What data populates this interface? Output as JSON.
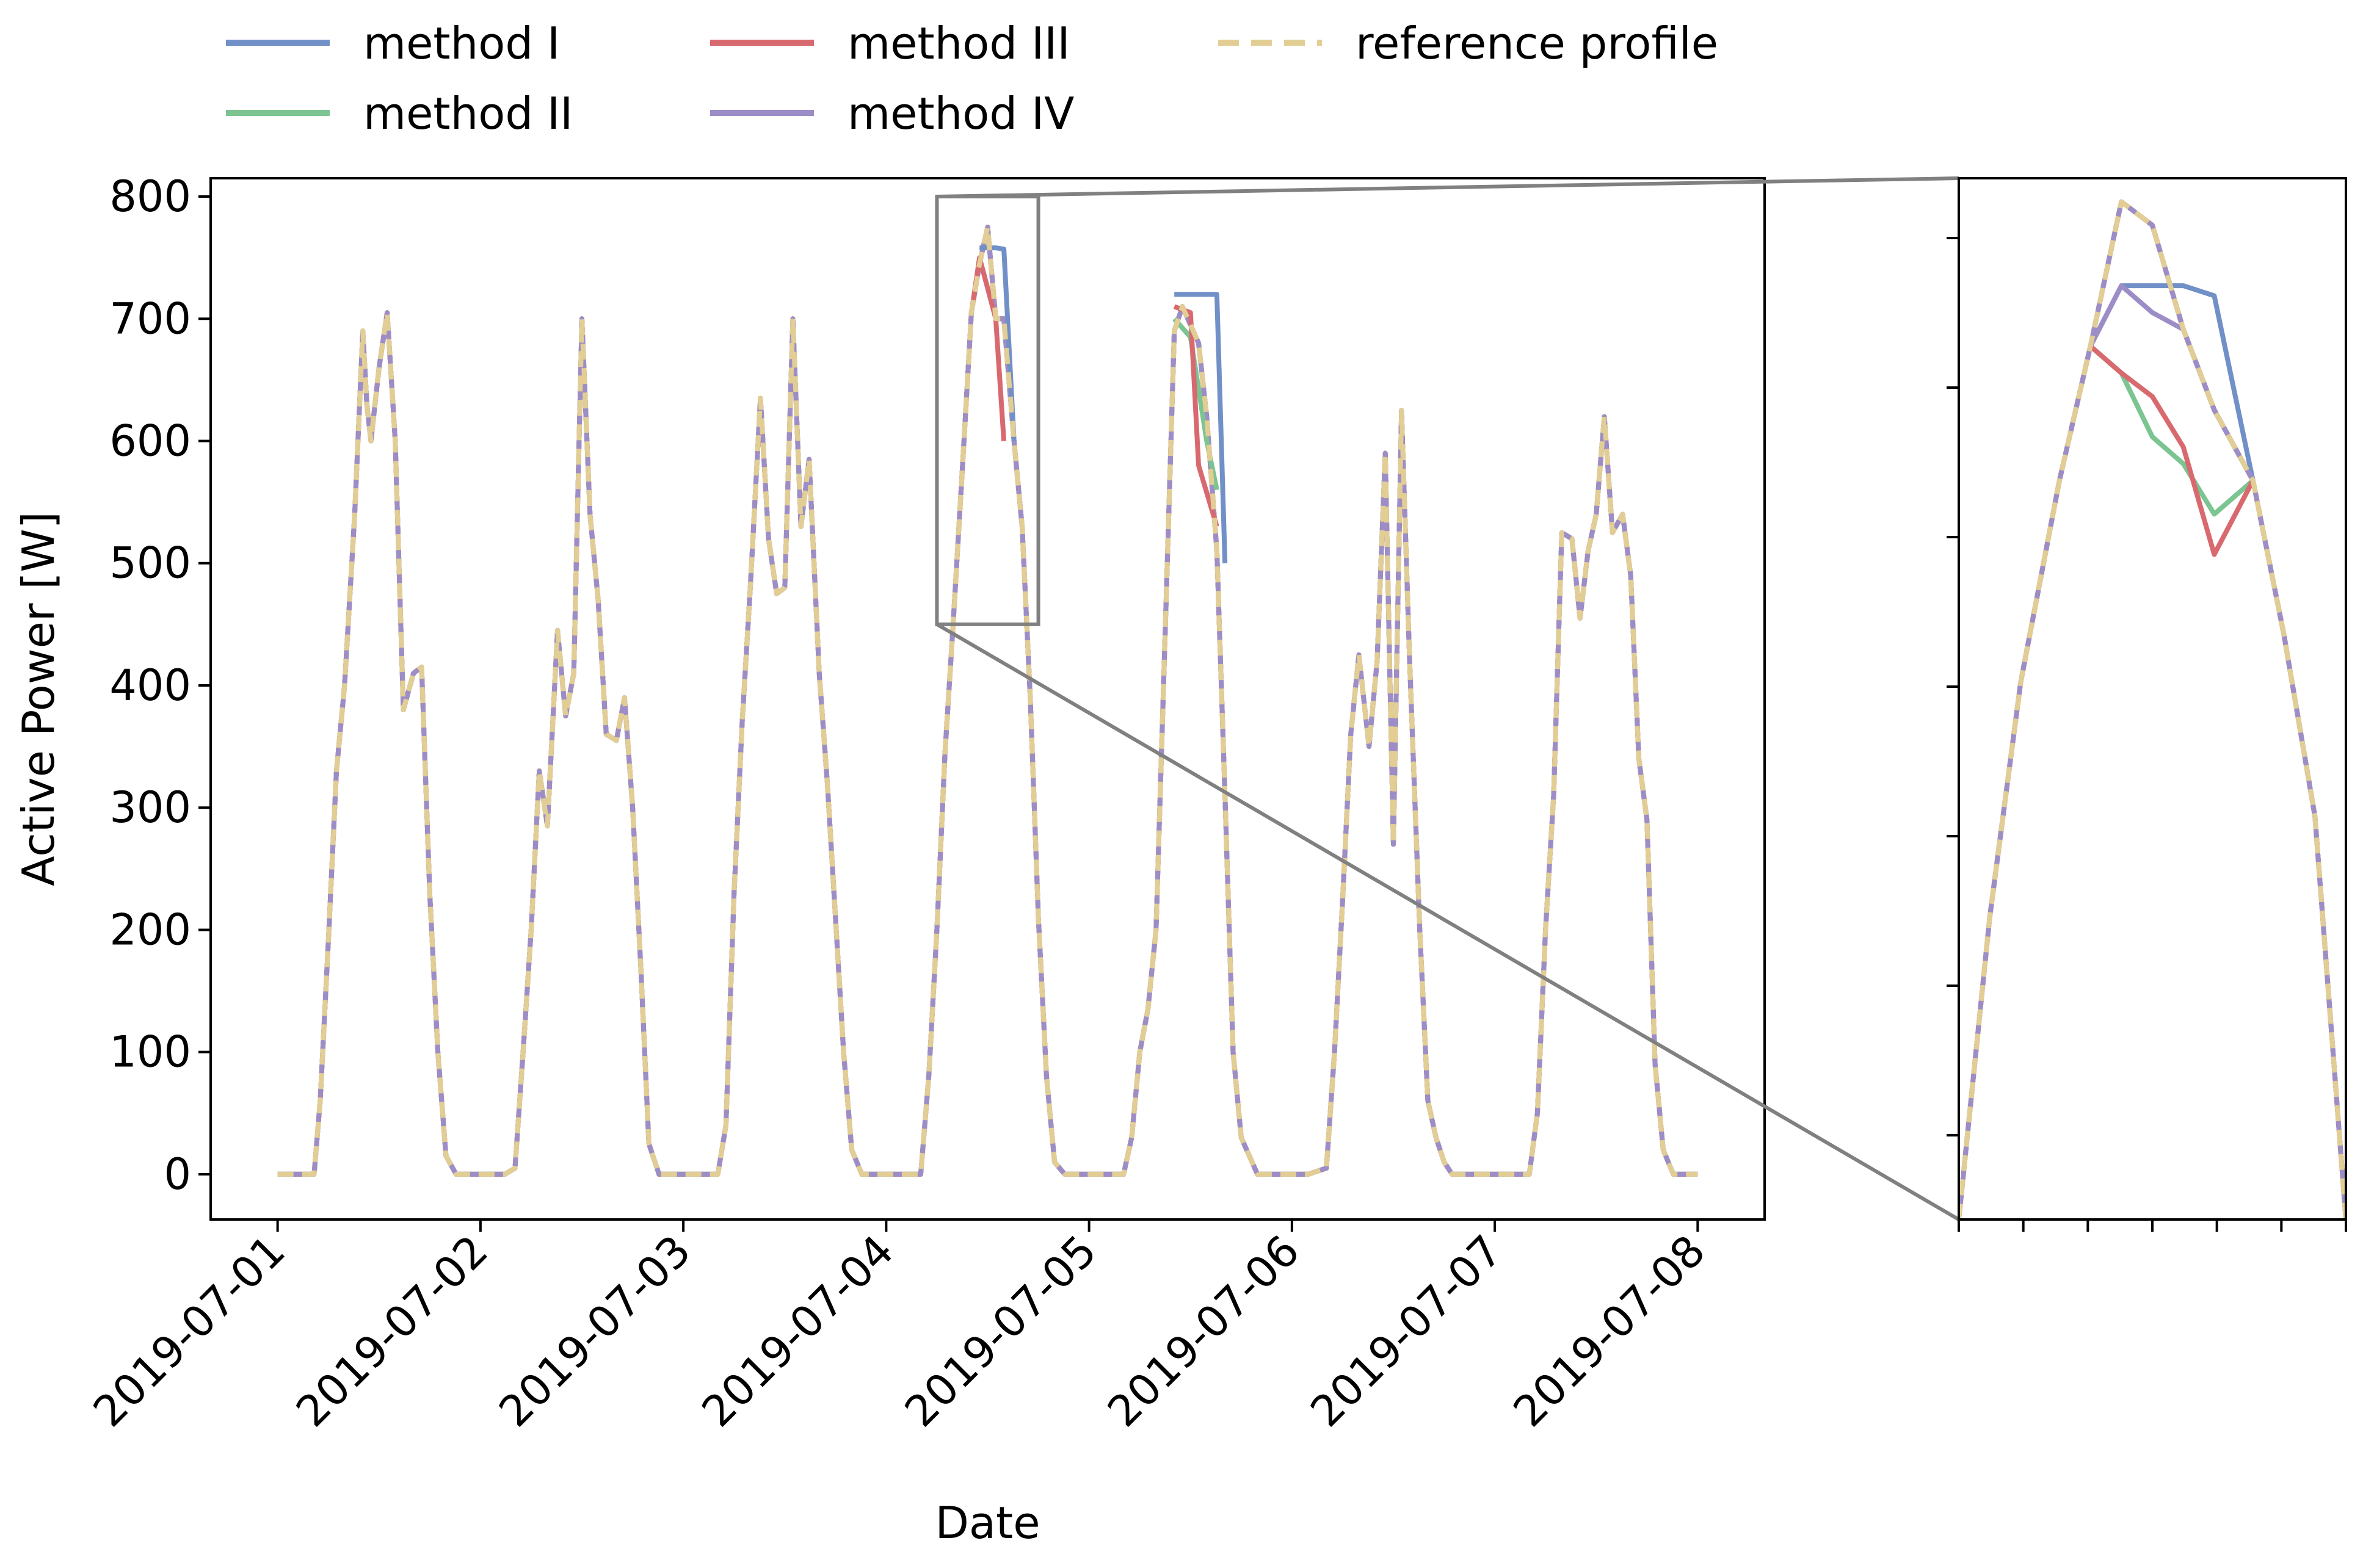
{
  "chart_data": {
    "type": "line",
    "title": "",
    "xlabel": "Date",
    "ylabel": "Active Power [W]",
    "ylim": [
      -37,
      815
    ],
    "xlim": [
      -0.33,
      7.33
    ],
    "yticks": [
      0,
      100,
      200,
      300,
      400,
      500,
      600,
      700,
      800
    ],
    "ytick_labels": [
      "0",
      "100",
      "200",
      "300",
      "400",
      "500",
      "600",
      "700",
      "800"
    ],
    "xtick_labels": [
      "2019-07-01",
      "2019-07-02",
      "2019-07-03",
      "2019-07-04",
      "2019-07-05",
      "2019-07-06",
      "2019-07-07",
      "2019-07-08"
    ],
    "x_unit": "days since 2019-07-01 00:00",
    "legend": {
      "position": "top",
      "entries": [
        {
          "label": "method I",
          "color": "#7190c7",
          "style": "solid"
        },
        {
          "label": "method II",
          "color": "#7cc491",
          "style": "solid"
        },
        {
          "label": "method III",
          "color": "#d8696f",
          "style": "solid"
        },
        {
          "label": "method IV",
          "color": "#9c8dc6",
          "style": "solid"
        },
        {
          "label": "reference profile",
          "color": "#e2ce94",
          "style": "dashed"
        }
      ]
    },
    "reference_profile": [
      [
        0.0,
        0
      ],
      [
        0.08,
        0
      ],
      [
        0.18,
        0
      ],
      [
        0.21,
        60
      ],
      [
        0.25,
        190
      ],
      [
        0.29,
        330
      ],
      [
        0.33,
        400
      ],
      [
        0.38,
        540
      ],
      [
        0.42,
        690
      ],
      [
        0.44,
        630
      ],
      [
        0.46,
        600
      ],
      [
        0.5,
        660
      ],
      [
        0.54,
        705
      ],
      [
        0.58,
        600
      ],
      [
        0.62,
        380
      ],
      [
        0.67,
        410
      ],
      [
        0.71,
        415
      ],
      [
        0.75,
        230
      ],
      [
        0.79,
        100
      ],
      [
        0.83,
        15
      ],
      [
        0.88,
        0
      ],
      [
        1.0,
        0
      ],
      [
        1.12,
        0
      ],
      [
        1.17,
        5
      ],
      [
        1.21,
        100
      ],
      [
        1.25,
        200
      ],
      [
        1.29,
        330
      ],
      [
        1.33,
        285
      ],
      [
        1.38,
        445
      ],
      [
        1.42,
        375
      ],
      [
        1.46,
        410
      ],
      [
        1.5,
        700
      ],
      [
        1.54,
        540
      ],
      [
        1.58,
        470
      ],
      [
        1.62,
        360
      ],
      [
        1.67,
        355
      ],
      [
        1.71,
        390
      ],
      [
        1.75,
        300
      ],
      [
        1.79,
        170
      ],
      [
        1.83,
        25
      ],
      [
        1.88,
        0
      ],
      [
        2.0,
        0
      ],
      [
        2.17,
        0
      ],
      [
        2.21,
        40
      ],
      [
        2.25,
        230
      ],
      [
        2.29,
        370
      ],
      [
        2.33,
        480
      ],
      [
        2.38,
        635
      ],
      [
        2.42,
        520
      ],
      [
        2.46,
        475
      ],
      [
        2.5,
        480
      ],
      [
        2.54,
        700
      ],
      [
        2.58,
        530
      ],
      [
        2.62,
        585
      ],
      [
        2.67,
        410
      ],
      [
        2.71,
        320
      ],
      [
        2.75,
        210
      ],
      [
        2.79,
        100
      ],
      [
        2.83,
        20
      ],
      [
        2.88,
        0
      ],
      [
        3.0,
        0
      ],
      [
        3.17,
        0
      ],
      [
        3.21,
        80
      ],
      [
        3.25,
        200
      ],
      [
        3.29,
        345
      ],
      [
        3.33,
        450
      ],
      [
        3.38,
        590
      ],
      [
        3.42,
        705
      ],
      [
        3.46,
        745
      ],
      [
        3.5,
        775
      ],
      [
        3.54,
        700
      ],
      [
        3.58,
        700
      ],
      [
        3.63,
        600
      ],
      [
        3.67,
        530
      ],
      [
        3.71,
        390
      ],
      [
        3.75,
        210
      ],
      [
        3.79,
        80
      ],
      [
        3.83,
        10
      ],
      [
        3.88,
        0
      ],
      [
        4.0,
        0
      ],
      [
        4.17,
        0
      ],
      [
        4.21,
        30
      ],
      [
        4.25,
        100
      ],
      [
        4.29,
        135
      ],
      [
        4.33,
        200
      ],
      [
        4.38,
        470
      ],
      [
        4.42,
        690
      ],
      [
        4.46,
        710
      ],
      [
        4.5,
        695
      ],
      [
        4.54,
        680
      ],
      [
        4.58,
        620
      ],
      [
        4.63,
        510
      ],
      [
        4.67,
        310
      ],
      [
        4.71,
        100
      ],
      [
        4.75,
        30
      ],
      [
        4.79,
        15
      ],
      [
        4.83,
        0
      ],
      [
        5.0,
        0
      ],
      [
        5.04,
        0
      ],
      [
        5.08,
        0
      ],
      [
        5.17,
        5
      ],
      [
        5.21,
        100
      ],
      [
        5.25,
        225
      ],
      [
        5.29,
        360
      ],
      [
        5.33,
        425
      ],
      [
        5.38,
        350
      ],
      [
        5.42,
        420
      ],
      [
        5.46,
        590
      ],
      [
        5.5,
        270
      ],
      [
        5.54,
        625
      ],
      [
        5.58,
        420
      ],
      [
        5.63,
        200
      ],
      [
        5.67,
        60
      ],
      [
        5.71,
        30
      ],
      [
        5.75,
        10
      ],
      [
        5.79,
        0
      ],
      [
        6.0,
        0
      ],
      [
        6.17,
        0
      ],
      [
        6.21,
        50
      ],
      [
        6.25,
        200
      ],
      [
        6.29,
        310
      ],
      [
        6.33,
        525
      ],
      [
        6.38,
        520
      ],
      [
        6.42,
        455
      ],
      [
        6.46,
        510
      ],
      [
        6.5,
        540
      ],
      [
        6.54,
        620
      ],
      [
        6.58,
        525
      ],
      [
        6.63,
        540
      ],
      [
        6.67,
        490
      ],
      [
        6.71,
        340
      ],
      [
        6.75,
        290
      ],
      [
        6.79,
        90
      ],
      [
        6.83,
        20
      ],
      [
        6.88,
        0
      ],
      [
        7.0,
        0
      ]
    ],
    "overview_deviations": [
      {
        "series": "method I",
        "points": [
          [
            3.46,
            758
          ],
          [
            3.54,
            758
          ],
          [
            3.58,
            757
          ],
          [
            3.63,
            600
          ]
        ]
      },
      {
        "series": "method I",
        "points": [
          [
            4.42,
            720
          ],
          [
            4.54,
            720
          ],
          [
            4.63,
            720
          ],
          [
            4.67,
            500
          ]
        ]
      },
      {
        "series": "method II",
        "points": [
          [
            4.42,
            700
          ],
          [
            4.5,
            685
          ],
          [
            4.58,
            600
          ],
          [
            4.63,
            560
          ]
        ]
      },
      {
        "series": "method III",
        "points": [
          [
            3.42,
            705
          ],
          [
            3.46,
            750
          ],
          [
            3.5,
            725
          ],
          [
            3.54,
            700
          ],
          [
            3.58,
            600
          ]
        ]
      },
      {
        "series": "method III",
        "points": [
          [
            4.42,
            710
          ],
          [
            4.5,
            705
          ],
          [
            4.54,
            580
          ],
          [
            4.63,
            530
          ]
        ]
      }
    ],
    "zoom_window": {
      "x0": 3.25,
      "x1": 3.75,
      "y0": 450,
      "y1": 800
    },
    "inset": {
      "xlim": [
        3.25,
        3.75
      ],
      "ylim": [
        470,
        780
      ],
      "reference_profile": [
        [
          3.25,
          470
        ],
        [
          3.29,
          560
        ],
        [
          3.33,
          630
        ],
        [
          3.38,
          690
        ],
        [
          3.42,
          730
        ],
        [
          3.46,
          773
        ],
        [
          3.5,
          766
        ],
        [
          3.54,
          735
        ],
        [
          3.58,
          711
        ],
        [
          3.63,
          690
        ],
        [
          3.67,
          644
        ],
        [
          3.71,
          590
        ],
        [
          3.75,
          470
        ]
      ],
      "method I": [
        [
          3.42,
          730
        ],
        [
          3.46,
          748
        ],
        [
          3.54,
          748
        ],
        [
          3.58,
          745
        ],
        [
          3.63,
          690
        ]
      ],
      "method II": [
        [
          3.42,
          730
        ],
        [
          3.46,
          722
        ],
        [
          3.5,
          703
        ],
        [
          3.54,
          695
        ],
        [
          3.58,
          680
        ],
        [
          3.63,
          690
        ]
      ],
      "method III": [
        [
          3.42,
          730
        ],
        [
          3.46,
          722
        ],
        [
          3.5,
          715
        ],
        [
          3.54,
          700
        ],
        [
          3.58,
          668
        ],
        [
          3.63,
          690
        ]
      ],
      "method IV": [
        [
          3.42,
          730
        ],
        [
          3.46,
          748
        ],
        [
          3.5,
          740
        ],
        [
          3.54,
          735
        ],
        [
          3.58,
          711
        ],
        [
          3.63,
          690
        ]
      ]
    }
  }
}
